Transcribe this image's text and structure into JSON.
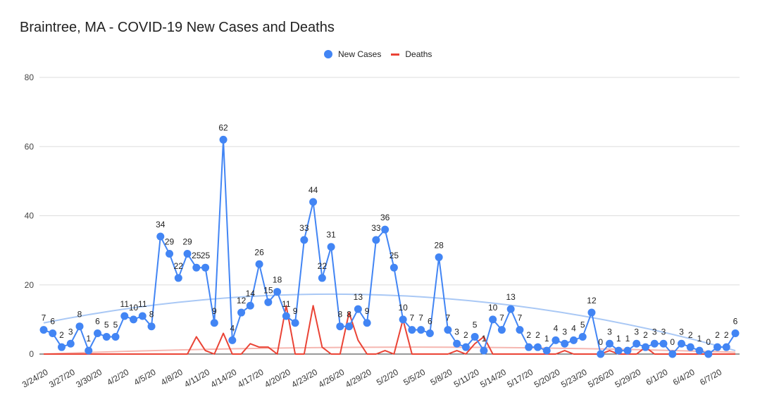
{
  "chart_data": {
    "type": "line",
    "title": "Braintree, MA - COVID-19 New Cases and Deaths",
    "xlabel": "",
    "ylabel": "",
    "ylim": [
      0,
      80
    ],
    "yticks": [
      0,
      20,
      40,
      60,
      80
    ],
    "x_tick_labels": [
      "3/24/20",
      "3/27/20",
      "3/30/20",
      "4/2/20",
      "4/5/20",
      "4/8/20",
      "4/11/20",
      "4/14/20",
      "4/17/20",
      "4/20/20",
      "4/23/20",
      "4/26/20",
      "4/29/20",
      "5/2/20",
      "5/5/20",
      "5/8/20",
      "5/11/20",
      "5/14/20",
      "5/17/20",
      "5/20/20",
      "5/23/20",
      "5/26/20",
      "5/29/20",
      "6/1/20",
      "6/4/20",
      "6/7/20"
    ],
    "x_tick_every": 3,
    "legend": [
      "New Cases",
      "Deaths"
    ],
    "series": [
      {
        "name": "New Cases",
        "color": "#4285f4",
        "values": [
          7,
          6,
          2,
          3,
          8,
          1,
          6,
          5,
          5,
          11,
          10,
          11,
          8,
          34,
          29,
          22,
          29,
          25,
          25,
          9,
          62,
          4,
          12,
          14,
          26,
          15,
          18,
          11,
          9,
          33,
          44,
          22,
          31,
          8,
          8,
          13,
          9,
          33,
          36,
          25,
          10,
          7,
          7,
          6,
          28,
          7,
          3,
          2,
          5,
          1,
          10,
          7,
          13,
          7,
          2,
          2,
          1,
          4,
          3,
          4,
          5,
          12,
          0,
          3,
          1,
          1,
          3,
          2,
          3,
          3,
          0,
          3,
          2,
          1,
          0,
          2,
          2,
          6
        ]
      },
      {
        "name": "Deaths",
        "color": "#ea4335",
        "values": [
          0,
          0,
          0,
          0,
          0,
          0,
          0,
          0,
          0,
          0,
          0,
          0,
          0,
          0,
          0,
          0,
          0,
          5,
          1,
          0,
          6,
          0,
          0,
          3,
          2,
          2,
          0,
          14,
          0,
          0,
          14,
          2,
          0,
          0,
          12,
          4,
          0,
          0,
          1,
          0,
          10,
          0,
          0,
          0,
          0,
          0,
          1,
          0,
          3,
          5,
          0,
          0,
          0,
          0,
          0,
          0,
          0,
          0,
          1,
          0,
          0,
          0,
          0,
          1,
          0,
          0,
          0,
          2,
          0,
          0,
          0,
          0,
          0,
          0,
          0,
          0,
          0,
          0
        ]
      }
    ],
    "trendlines": [
      {
        "of": "New Cases",
        "color": "#a9c8f5",
        "start": 9,
        "peak": 17,
        "end": 1
      },
      {
        "of": "Deaths",
        "color": "#f5b7b1",
        "start": 0,
        "peak": 2,
        "end": 0.5
      }
    ]
  }
}
